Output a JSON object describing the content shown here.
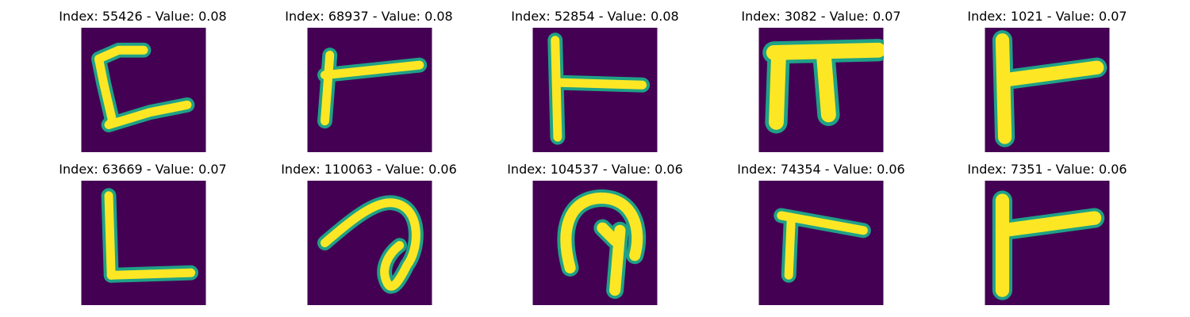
{
  "colors": {
    "background": "#440154",
    "stroke_edge": "#1fa187",
    "stroke_core": "#fde725"
  },
  "panels": [
    {
      "title": "Index: 55426 - Value: 0.08",
      "glyph": "open-bracket-with-tail",
      "row": 0,
      "col": 0
    },
    {
      "title": "Index: 68937 - Value: 0.08",
      "glyph": "tee-right",
      "row": 0,
      "col": 1
    },
    {
      "title": "Index: 52854 - Value: 0.08",
      "glyph": "tee-right-thin",
      "row": 0,
      "col": 2
    },
    {
      "title": "Index: 3082 - Value: 0.07",
      "glyph": "pi-shape",
      "row": 0,
      "col": 3
    },
    {
      "title": "Index: 1021 - Value: 0.07",
      "glyph": "tee-right-bold",
      "row": 0,
      "col": 4
    },
    {
      "title": "Index: 63669 - Value: 0.07",
      "glyph": "l-shape",
      "row": 1,
      "col": 0
    },
    {
      "title": "Index: 110063 - Value: 0.06",
      "glyph": "curved-loop",
      "row": 1,
      "col": 1
    },
    {
      "title": "Index: 104537 - Value: 0.06",
      "glyph": "hook-arch",
      "row": 1,
      "col": 2
    },
    {
      "title": "Index: 74354 - Value: 0.06",
      "glyph": "seven-like",
      "row": 1,
      "col": 3
    },
    {
      "title": "Index: 7351 - Value: 0.06",
      "glyph": "tee-right-bold",
      "row": 1,
      "col": 4
    }
  ]
}
